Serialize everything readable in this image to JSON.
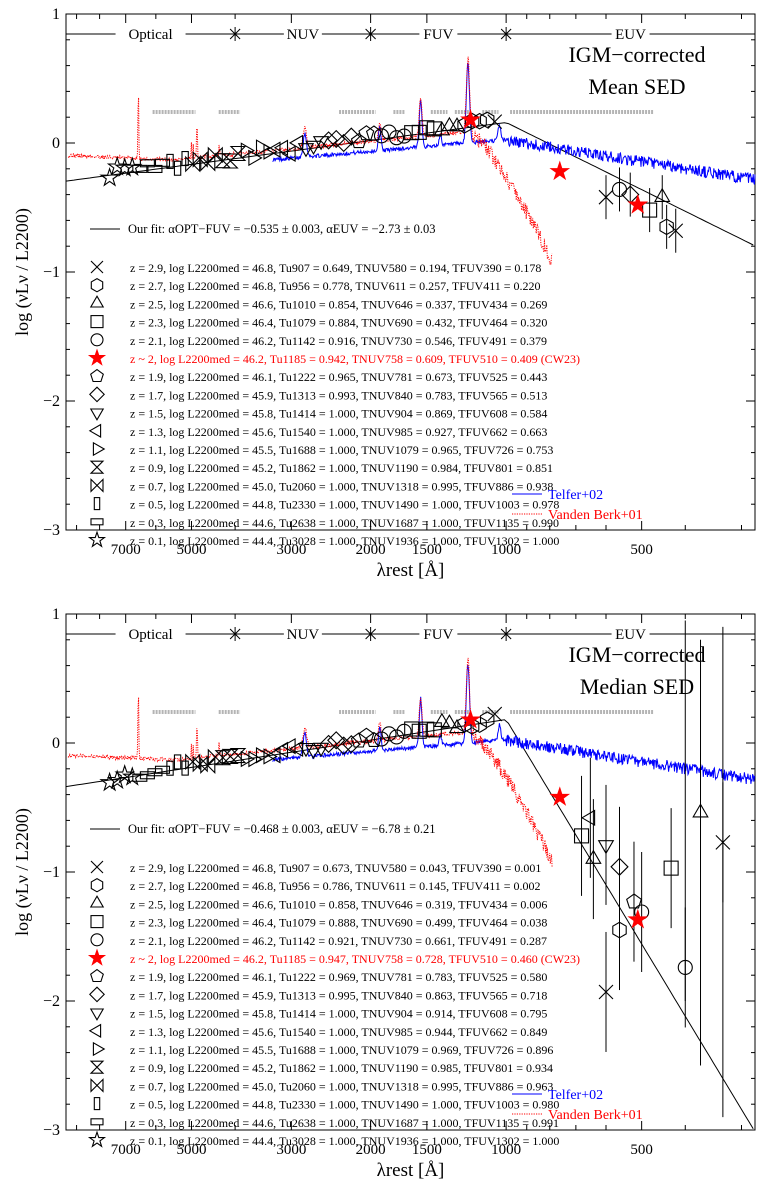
{
  "chart_data": [
    {
      "type": "line",
      "panel": "top",
      "title": "IGM−corrected Mean SED",
      "title_lines": [
        "IGM−corrected",
        "Mean SED"
      ],
      "xlabel": "λrest [Å]",
      "ylabel": "log (νLν / L2200)",
      "x_scale": "log",
      "x_reversed": true,
      "xlim": [
        9500,
        280
      ],
      "ylim": [
        -3,
        1
      ],
      "xticks": [
        7000,
        5000,
        3000,
        2000,
        1500,
        1000,
        500
      ],
      "yticks": [
        1,
        0,
        -1,
        -2,
        -3
      ],
      "bands": [
        {
          "label": "Optical",
          "range": [
            9500,
            4000
          ]
        },
        {
          "label": "NUV",
          "range": [
            4000,
            2000
          ]
        },
        {
          "label": "FUV",
          "range": [
            2000,
            1000
          ]
        },
        {
          "label": "EUV",
          "range": [
            1000,
            280
          ]
        }
      ],
      "fit_label": "Our fit: αOPT−FUV = −0.535 ± 0.003, αEUV = −2.73 ± 0.03",
      "fit": {
        "alpha_opt_fuv": -0.535,
        "alpha_opt_fuv_err": 0.003,
        "alpha_euv": -2.73,
        "alpha_euv_err": 0.03,
        "break": 1000
      },
      "legend_entries": [
        {
          "marker": "x",
          "text": "z = 2.9,   log L2200med = 46.8,   Tu907 = 0.649,   TNUV580 = 0.194,   TFUV390 = 0.178"
        },
        {
          "marker": "hexagon",
          "text": "z = 2.7,   log L2200med = 46.8,   Tu956 = 0.778,   TNUV611 = 0.257,   TFUV411 = 0.220"
        },
        {
          "marker": "triangle",
          "text": "z = 2.5,   log L2200med = 46.6,   Tu1010 = 0.854,   TNUV646 = 0.337,   TFUV434 = 0.269"
        },
        {
          "marker": "square",
          "text": "z = 2.3,   log L2200med = 46.4,   Tu1079 = 0.884,   TNUV690 = 0.432,   TFUV464 = 0.320"
        },
        {
          "marker": "circle",
          "text": "z = 2.1,   log L2200med = 46.2,   Tu1142 = 0.916,   TNUV730 = 0.546,   TFUV491 = 0.379"
        },
        {
          "marker": "star-red",
          "text": "z ~ 2,   log L2200med = 46.2,   Tu1185 = 0.942,   TNUV758 = 0.609,   TFUV510 = 0.409 (CW23)"
        },
        {
          "marker": "pentagon",
          "text": "z = 1.9,   log L2200med = 46.1,   Tu1222 = 0.965,   TNUV781 = 0.673,   TFUV525 = 0.443"
        },
        {
          "marker": "diamond",
          "text": "z = 1.7,   log L2200med = 45.9,   Tu1313 = 0.993,   TNUV840 = 0.783,   TFUV565 = 0.513"
        },
        {
          "marker": "tri-down",
          "text": "z = 1.5,   log L2200med = 45.8,   Tu1414 = 1.000,   TNUV904 = 0.869,   TFUV608 = 0.584"
        },
        {
          "marker": "tri-left",
          "text": "z = 1.3,   log L2200med = 45.6,   Tu1540 = 1.000,   TNUV985 = 0.927,   TFUV662 = 0.663"
        },
        {
          "marker": "tri-right",
          "text": "z = 1.1,   log L2200med = 45.5,   Tu1688 = 1.000,   TNUV1079 = 0.965,   TFUV726 = 0.753"
        },
        {
          "marker": "hourglass",
          "text": "z = 0.9,   log L2200med = 45.2,   Tu1862 = 1.000,   TNUV1190 = 0.984,   TFUV801 = 0.851"
        },
        {
          "marker": "bowtie",
          "text": "z = 0.7,   log L2200med = 45.0,   Tu2060 = 1.000,   TNUV1318 = 0.995,   TFUV886 = 0.938"
        },
        {
          "marker": "rect-tall",
          "text": "z = 0.5,   log L2200med = 44.8,   Tu2330 = 1.000,   TNUV1490 = 1.000,   TFUV1003 = 0.978"
        },
        {
          "marker": "rect-wide",
          "text": "z = 0.3,   log L2200med = 44.6,   Tu2638 = 1.000,   TNUV1687 = 1.000,   TFUV1135 = 0.990"
        },
        {
          "marker": "star-open",
          "text": "z = 0.1,   log L2200med = 44.4,   Tu3028 = 1.000,   TNUV1936 = 1.000,   TFUV1302 = 1.000"
        }
      ],
      "templates": [
        {
          "name": "Telfer+02",
          "color": "#0000ff"
        },
        {
          "name": "Vanden Berk+01",
          "color": "#ff0000"
        }
      ],
      "red_star_points": [
        {
          "x": 1200,
          "y": 0.18
        },
        {
          "x": 760,
          "y": -0.22
        },
        {
          "x": 510,
          "y": -0.48
        }
      ],
      "high_z_points": [
        {
          "x": 600,
          "y": -0.42,
          "marker": "x"
        },
        {
          "x": 420,
          "y": -0.68,
          "marker": "x"
        },
        {
          "x": 480,
          "y": -0.52,
          "marker": "square"
        },
        {
          "x": 440,
          "y": -0.65,
          "marker": "hexagon"
        },
        {
          "x": 560,
          "y": -0.36,
          "marker": "circle"
        },
        {
          "x": 530,
          "y": -0.4,
          "marker": "diamond"
        },
        {
          "x": 450,
          "y": -0.42,
          "marker": "triangle"
        }
      ]
    },
    {
      "type": "line",
      "panel": "bottom",
      "title": "IGM−corrected Median SED",
      "title_lines": [
        "IGM−corrected",
        "Median SED"
      ],
      "xlabel": "λrest [Å]",
      "ylabel": "log (νLν / L2200)",
      "x_scale": "log",
      "x_reversed": true,
      "xlim": [
        9500,
        280
      ],
      "ylim": [
        -3,
        1
      ],
      "xticks": [
        7000,
        5000,
        3000,
        2000,
        1500,
        1000,
        500
      ],
      "yticks": [
        1,
        0,
        -1,
        -2,
        -3
      ],
      "bands": [
        {
          "label": "Optical",
          "range": [
            9500,
            4000
          ]
        },
        {
          "label": "NUV",
          "range": [
            4000,
            2000
          ]
        },
        {
          "label": "FUV",
          "range": [
            2000,
            1000
          ]
        },
        {
          "label": "EUV",
          "range": [
            1000,
            280
          ]
        }
      ],
      "fit_label": "Our fit: αOPT−FUV = −0.468 ± 0.003, αEUV = −6.78 ± 0.21",
      "fit": {
        "alpha_opt_fuv": -0.468,
        "alpha_opt_fuv_err": 0.003,
        "alpha_euv": -6.78,
        "alpha_euv_err": 0.21,
        "break": 1000
      },
      "legend_entries": [
        {
          "marker": "x",
          "text": "z = 2.9,   log L2200med = 46.8,   Tu907 = 0.673,   TNUV580 = 0.043,   TFUV390 = 0.001"
        },
        {
          "marker": "hexagon",
          "text": "z = 2.7,   log L2200med = 46.8,   Tu956 = 0.786,   TNUV611 = 0.145,   TFUV411 = 0.002"
        },
        {
          "marker": "triangle",
          "text": "z = 2.5,   log L2200med = 46.6,   Tu1010 = 0.858,   TNUV646 = 0.319,   TFUV434 = 0.006"
        },
        {
          "marker": "square",
          "text": "z = 2.3,   log L2200med = 46.4,   Tu1079 = 0.888,   TNUV690 = 0.499,   TFUV464 = 0.038"
        },
        {
          "marker": "circle",
          "text": "z = 2.1,   log L2200med = 46.2,   Tu1142 = 0.921,   TNUV730 = 0.661,   TFUV491 = 0.287"
        },
        {
          "marker": "star-red",
          "text": "z ~ 2,   log L2200med = 46.2,   Tu1185 = 0.947,   TNUV758 = 0.728,   TFUV510 = 0.460 (CW23)"
        },
        {
          "marker": "pentagon",
          "text": "z = 1.9,   log L2200med = 46.1,   Tu1222 = 0.969,   TNUV781 = 0.783,   TFUV525 = 0.580"
        },
        {
          "marker": "diamond",
          "text": "z = 1.7,   log L2200med = 45.9,   Tu1313 = 0.995,   TNUV840 = 0.863,   TFUV565 = 0.718"
        },
        {
          "marker": "tri-down",
          "text": "z = 1.5,   log L2200med = 45.8,   Tu1414 = 1.000,   TNUV904 = 0.914,   TFUV608 = 0.795"
        },
        {
          "marker": "tri-left",
          "text": "z = 1.3,   log L2200med = 45.6,   Tu1540 = 1.000,   TNUV985 = 0.944,   TFUV662 = 0.849"
        },
        {
          "marker": "tri-right",
          "text": "z = 1.1,   log L2200med = 45.5,   Tu1688 = 1.000,   TNUV1079 = 0.969,   TFUV726 = 0.896"
        },
        {
          "marker": "hourglass",
          "text": "z = 0.9,   log L2200med = 45.2,   Tu1862 = 1.000,   TNUV1190 = 0.985,   TFUV801 = 0.934"
        },
        {
          "marker": "bowtie",
          "text": "z = 0.7,   log L2200med = 45.0,   Tu2060 = 1.000,   TNUV1318 = 0.995,   TFUV886 = 0.963"
        },
        {
          "marker": "rect-tall",
          "text": "z = 0.5,   log L2200med = 44.8,   Tu2330 = 1.000,   TNUV1490 = 1.000,   TFUV1003 = 0.980"
        },
        {
          "marker": "rect-wide",
          "text": "z = 0.3,   log L2200med = 44.6,   Tu2638 = 1.000,   TNUV1687 = 1.000,   TFUV1135 = 0.991"
        },
        {
          "marker": "star-open",
          "text": "z = 0.1,   log L2200med = 44.4,   Tu3028 = 1.000,   TNUV1936 = 1.000,   TFUV1302 = 1.000"
        }
      ],
      "templates": [
        {
          "name": "Telfer+02",
          "color": "#0000ff"
        },
        {
          "name": "Vanden Berk+01",
          "color": "#ff0000"
        }
      ],
      "red_star_points": [
        {
          "x": 1200,
          "y": 0.18
        },
        {
          "x": 760,
          "y": -0.42
        },
        {
          "x": 510,
          "y": -1.37
        }
      ],
      "high_z_points": [
        {
          "x": 600,
          "y": -1.93,
          "marker": "x"
        },
        {
          "x": 330,
          "y": -0.77,
          "marker": "x"
        },
        {
          "x": 560,
          "y": -1.45,
          "marker": "hexagon"
        },
        {
          "x": 400,
          "y": -1.74,
          "marker": "circle"
        },
        {
          "x": 430,
          "y": -0.97,
          "marker": "square"
        },
        {
          "x": 370,
          "y": -0.54,
          "marker": "triangle"
        },
        {
          "x": 640,
          "y": -0.9,
          "marker": "triangle"
        },
        {
          "x": 680,
          "y": -0.72,
          "marker": "square"
        },
        {
          "x": 600,
          "y": -0.79,
          "marker": "tri-down"
        },
        {
          "x": 650,
          "y": -0.58,
          "marker": "tri-left"
        },
        {
          "x": 520,
          "y": -1.23,
          "marker": "pentagon"
        },
        {
          "x": 500,
          "y": -1.31,
          "marker": "circle"
        },
        {
          "x": 560,
          "y": -0.96,
          "marker": "diamond"
        }
      ]
    }
  ]
}
